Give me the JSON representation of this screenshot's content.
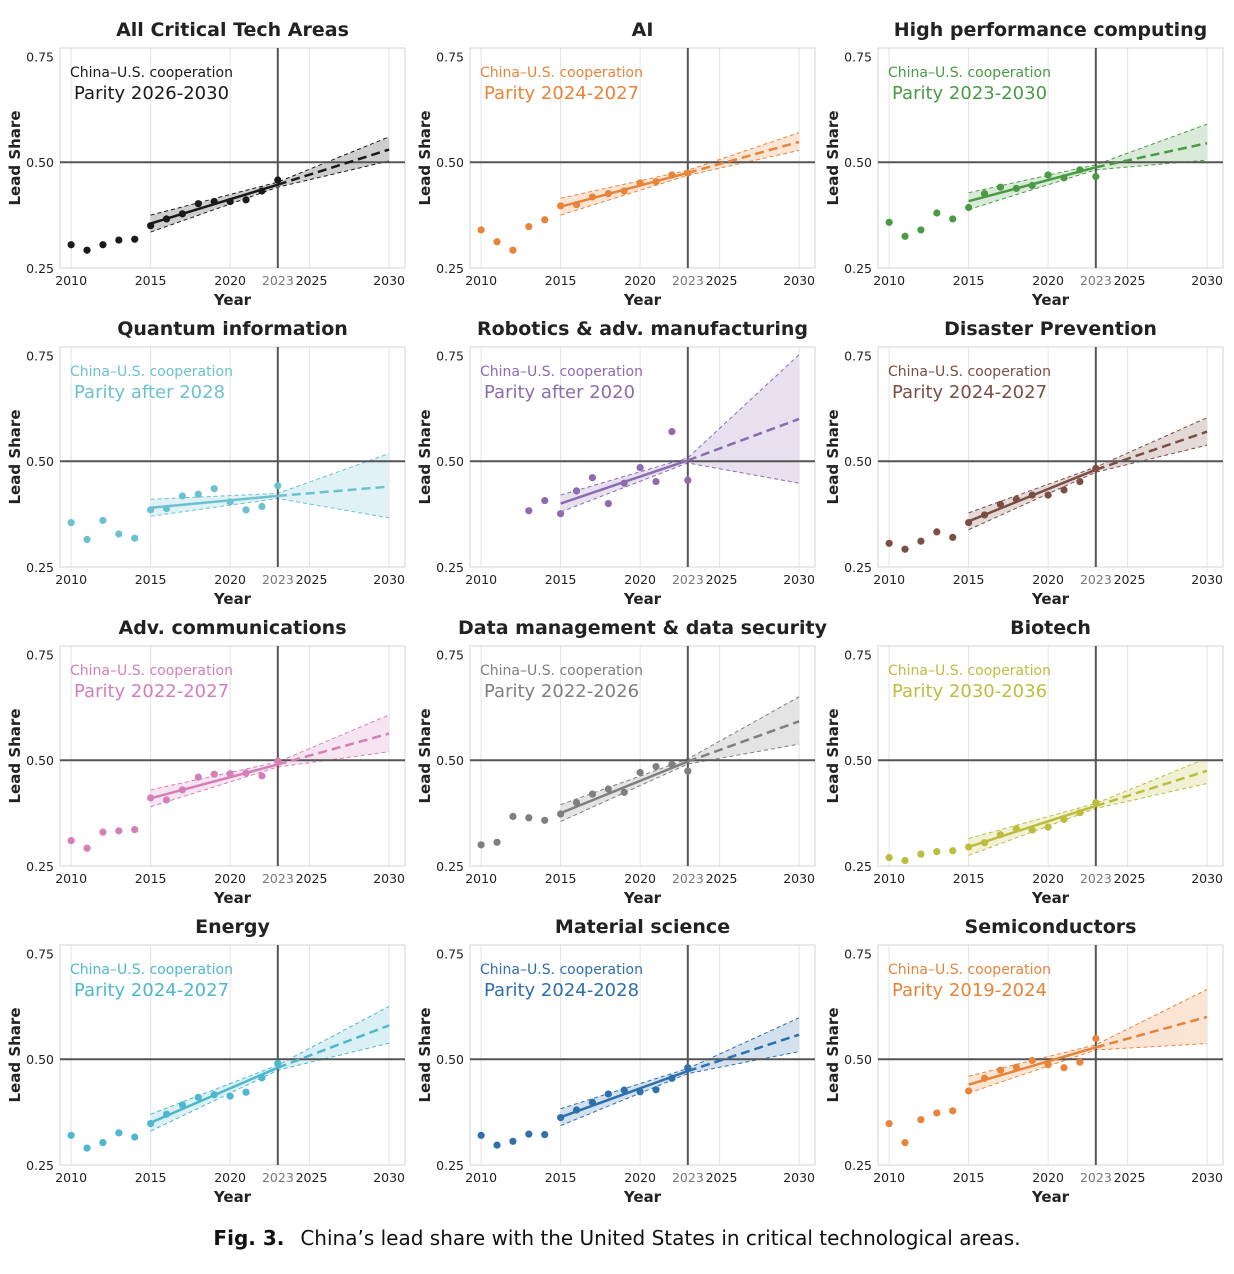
{
  "caption": {
    "label": "Fig. 3.",
    "text": "China’s lead share with the United States in critical technological areas."
  },
  "axes": {
    "xlabel": "Year",
    "ylabel": "Lead Share",
    "xlim": [
      2009.3,
      2031.0
    ],
    "ylim": [
      0.25,
      0.77
    ],
    "xticks": [
      2010,
      2015,
      2020,
      2023,
      2025,
      2030
    ],
    "highlight_xtick": 2023,
    "yticks": [
      0.25,
      0.5,
      0.75
    ],
    "ytick_labels": [
      "0.25",
      "0.50",
      "0.75"
    ],
    "reference_lines": {
      "x": 2023,
      "y": 0.5
    },
    "grid_x": true
  },
  "chart_data": [
    {
      "type": "scatter",
      "title": "All Critical Tech Areas",
      "color": "#1a1a1a",
      "annotation": {
        "line1": "China–U.S. cooperation",
        "line2": "Parity 2026-2030"
      },
      "points": [
        [
          2010,
          0.305
        ],
        [
          2011,
          0.292
        ],
        [
          2012,
          0.305
        ],
        [
          2013,
          0.316
        ],
        [
          2014,
          0.318
        ],
        [
          2015,
          0.35
        ],
        [
          2016,
          0.366
        ],
        [
          2017,
          0.378
        ],
        [
          2018,
          0.402
        ],
        [
          2019,
          0.407
        ],
        [
          2020,
          0.407
        ],
        [
          2021,
          0.411
        ],
        [
          2022,
          0.432
        ],
        [
          2023,
          0.458
        ]
      ],
      "fit": {
        "start": [
          2015,
          0.355
        ],
        "end": [
          2023,
          0.447
        ]
      },
      "projection": {
        "end": 2030,
        "mid": 0.53,
        "upper": 0.56,
        "lower": 0.503
      }
    },
    {
      "type": "scatter",
      "title": "AI",
      "color": "#e8843a",
      "annotation": {
        "line1": "China–U.S. cooperation",
        "line2": "Parity 2024-2027"
      },
      "points": [
        [
          2010,
          0.34
        ],
        [
          2011,
          0.312
        ],
        [
          2012,
          0.292
        ],
        [
          2013,
          0.348
        ],
        [
          2014,
          0.364
        ],
        [
          2015,
          0.397
        ],
        [
          2016,
          0.4
        ],
        [
          2017,
          0.418
        ],
        [
          2018,
          0.426
        ],
        [
          2019,
          0.432
        ],
        [
          2020,
          0.451
        ],
        [
          2021,
          0.454
        ],
        [
          2022,
          0.47
        ],
        [
          2023,
          0.474
        ]
      ],
      "fit": {
        "start": [
          2015,
          0.395
        ],
        "end": [
          2023,
          0.475
        ]
      },
      "projection": {
        "end": 2030,
        "mid": 0.548,
        "upper": 0.57,
        "lower": 0.528
      }
    },
    {
      "type": "scatter",
      "title": "High performance computing",
      "color": "#4a9a45",
      "annotation": {
        "line1": "China–U.S. cooperation",
        "line2": "Parity 2023-2030"
      },
      "points": [
        [
          2010,
          0.358
        ],
        [
          2011,
          0.325
        ],
        [
          2012,
          0.34
        ],
        [
          2013,
          0.38
        ],
        [
          2014,
          0.366
        ],
        [
          2015,
          0.393
        ],
        [
          2016,
          0.426
        ],
        [
          2017,
          0.441
        ],
        [
          2018,
          0.438
        ],
        [
          2019,
          0.445
        ],
        [
          2020,
          0.47
        ],
        [
          2021,
          0.463
        ],
        [
          2022,
          0.482
        ],
        [
          2023,
          0.466
        ]
      ],
      "fit": {
        "start": [
          2015,
          0.408
        ],
        "end": [
          2023,
          0.488
        ]
      },
      "projection": {
        "end": 2030,
        "mid": 0.545,
        "upper": 0.59,
        "lower": 0.505
      }
    },
    {
      "type": "scatter",
      "title": "Quantum information",
      "color": "#6cc1cf",
      "annotation": {
        "line1": "China–U.S. cooperation",
        "line2": "Parity after 2028"
      },
      "points": [
        [
          2010,
          0.355
        ],
        [
          2011,
          0.315
        ],
        [
          2012,
          0.36
        ],
        [
          2013,
          0.328
        ],
        [
          2014,
          0.318
        ],
        [
          2015,
          0.385
        ],
        [
          2016,
          0.388
        ],
        [
          2017,
          0.418
        ],
        [
          2018,
          0.422
        ],
        [
          2019,
          0.435
        ],
        [
          2020,
          0.404
        ],
        [
          2021,
          0.385
        ],
        [
          2022,
          0.393
        ],
        [
          2023,
          0.442
        ]
      ],
      "fit": {
        "start": [
          2015,
          0.39
        ],
        "end": [
          2023,
          0.418
        ]
      },
      "projection": {
        "end": 2030,
        "mid": 0.44,
        "upper": 0.518,
        "lower": 0.366
      }
    },
    {
      "type": "scatter",
      "title": "Robotics & adv. manufacturing",
      "color": "#8c6bb1",
      "annotation": {
        "line1": "China–U.S. cooperation",
        "line2": "Parity after 2020"
      },
      "points": [
        [
          2013,
          0.383
        ],
        [
          2014,
          0.407
        ],
        [
          2015,
          0.376
        ],
        [
          2016,
          0.43
        ],
        [
          2017,
          0.461
        ],
        [
          2018,
          0.4
        ],
        [
          2019,
          0.448
        ],
        [
          2020,
          0.485
        ],
        [
          2021,
          0.452
        ],
        [
          2022,
          0.57
        ],
        [
          2023,
          0.455
        ]
      ],
      "fit": {
        "start": [
          2015,
          0.4
        ],
        "end": [
          2023,
          0.502
        ]
      },
      "projection": {
        "end": 2030,
        "mid": 0.6,
        "upper": 0.752,
        "lower": 0.448
      }
    },
    {
      "type": "scatter",
      "title": "Disaster Prevention",
      "color": "#7a4e45",
      "annotation": {
        "line1": "China–U.S. cooperation",
        "line2": "Parity 2024-2027"
      },
      "points": [
        [
          2010,
          0.306
        ],
        [
          2011,
          0.292
        ],
        [
          2012,
          0.311
        ],
        [
          2013,
          0.333
        ],
        [
          2014,
          0.32
        ],
        [
          2015,
          0.355
        ],
        [
          2016,
          0.373
        ],
        [
          2017,
          0.398
        ],
        [
          2018,
          0.41
        ],
        [
          2019,
          0.42
        ],
        [
          2020,
          0.42
        ],
        [
          2021,
          0.432
        ],
        [
          2022,
          0.452
        ],
        [
          2023,
          0.483
        ]
      ],
      "fit": {
        "start": [
          2015,
          0.358
        ],
        "end": [
          2023,
          0.48
        ]
      },
      "projection": {
        "end": 2030,
        "mid": 0.57,
        "upper": 0.603,
        "lower": 0.538
      }
    },
    {
      "type": "scatter",
      "title": "Adv. communications",
      "color": "#d57fb8",
      "annotation": {
        "line1": "China–U.S. cooperation",
        "line2": "Parity 2022-2027"
      },
      "points": [
        [
          2010,
          0.31
        ],
        [
          2011,
          0.292
        ],
        [
          2012,
          0.33
        ],
        [
          2013,
          0.333
        ],
        [
          2014,
          0.336
        ],
        [
          2015,
          0.411
        ],
        [
          2016,
          0.406
        ],
        [
          2017,
          0.43
        ],
        [
          2018,
          0.46
        ],
        [
          2019,
          0.467
        ],
        [
          2020,
          0.468
        ],
        [
          2021,
          0.47
        ],
        [
          2022,
          0.463
        ],
        [
          2023,
          0.498
        ]
      ],
      "fit": {
        "start": [
          2015,
          0.41
        ],
        "end": [
          2023,
          0.49
        ]
      },
      "projection": {
        "end": 2030,
        "mid": 0.563,
        "upper": 0.607,
        "lower": 0.52
      }
    },
    {
      "type": "scatter",
      "title": "Data management & data security",
      "color": "#7f7f7f",
      "annotation": {
        "line1": "China–U.S. cooperation",
        "line2": "Parity 2022-2026"
      },
      "points": [
        [
          2010,
          0.3
        ],
        [
          2011,
          0.306
        ],
        [
          2012,
          0.367
        ],
        [
          2013,
          0.364
        ],
        [
          2014,
          0.358
        ],
        [
          2015,
          0.373
        ],
        [
          2016,
          0.4
        ],
        [
          2017,
          0.42
        ],
        [
          2018,
          0.432
        ],
        [
          2019,
          0.424
        ],
        [
          2020,
          0.471
        ],
        [
          2021,
          0.485
        ],
        [
          2022,
          0.49
        ],
        [
          2023,
          0.474
        ]
      ],
      "fit": {
        "start": [
          2015,
          0.375
        ],
        "end": [
          2023,
          0.497
        ]
      },
      "projection": {
        "end": 2030,
        "mid": 0.592,
        "upper": 0.65,
        "lower": 0.538
      }
    },
    {
      "type": "scatter",
      "title": "Biotech",
      "color": "#bcbd3f",
      "annotation": {
        "line1": "China–U.S. cooperation",
        "line2": "Parity 2030-2036"
      },
      "points": [
        [
          2010,
          0.27
        ],
        [
          2011,
          0.263
        ],
        [
          2012,
          0.278
        ],
        [
          2013,
          0.284
        ],
        [
          2014,
          0.286
        ],
        [
          2015,
          0.295
        ],
        [
          2016,
          0.305
        ],
        [
          2017,
          0.324
        ],
        [
          2018,
          0.338
        ],
        [
          2019,
          0.335
        ],
        [
          2020,
          0.342
        ],
        [
          2021,
          0.36
        ],
        [
          2022,
          0.376
        ],
        [
          2023,
          0.4
        ]
      ],
      "fit": {
        "start": [
          2015,
          0.295
        ],
        "end": [
          2023,
          0.392
        ]
      },
      "projection": {
        "end": 2030,
        "mid": 0.475,
        "upper": 0.505,
        "lower": 0.445
      }
    },
    {
      "type": "scatter",
      "title": "Energy",
      "color": "#4db8cd",
      "annotation": {
        "line1": "China–U.S. cooperation",
        "line2": "Parity 2024-2027"
      },
      "points": [
        [
          2010,
          0.32
        ],
        [
          2011,
          0.29
        ],
        [
          2012,
          0.303
        ],
        [
          2013,
          0.326
        ],
        [
          2014,
          0.316
        ],
        [
          2015,
          0.348
        ],
        [
          2016,
          0.37
        ],
        [
          2017,
          0.392
        ],
        [
          2018,
          0.41
        ],
        [
          2019,
          0.416
        ],
        [
          2020,
          0.413
        ],
        [
          2021,
          0.422
        ],
        [
          2022,
          0.456
        ],
        [
          2023,
          0.49
        ]
      ],
      "fit": {
        "start": [
          2015,
          0.35
        ],
        "end": [
          2023,
          0.48
        ]
      },
      "projection": {
        "end": 2030,
        "mid": 0.58,
        "upper": 0.625,
        "lower": 0.538
      }
    },
    {
      "type": "scatter",
      "title": "Material science",
      "color": "#2e6fac",
      "annotation": {
        "line1": "China–U.S. cooperation",
        "line2": "Parity 2024-2028"
      },
      "points": [
        [
          2010,
          0.32
        ],
        [
          2011,
          0.297
        ],
        [
          2012,
          0.306
        ],
        [
          2013,
          0.323
        ],
        [
          2014,
          0.322
        ],
        [
          2015,
          0.362
        ],
        [
          2016,
          0.38
        ],
        [
          2017,
          0.398
        ],
        [
          2018,
          0.418
        ],
        [
          2019,
          0.427
        ],
        [
          2020,
          0.423
        ],
        [
          2021,
          0.428
        ],
        [
          2022,
          0.455
        ],
        [
          2023,
          0.48
        ]
      ],
      "fit": {
        "start": [
          2015,
          0.363
        ],
        "end": [
          2023,
          0.472
        ]
      },
      "projection": {
        "end": 2030,
        "mid": 0.558,
        "upper": 0.598,
        "lower": 0.518
      }
    },
    {
      "type": "scatter",
      "title": "Semiconductors",
      "color": "#e8843a",
      "annotation": {
        "line1": "China–U.S. cooperation",
        "line2": "Parity 2019-2024"
      },
      "points": [
        [
          2010,
          0.348
        ],
        [
          2011,
          0.303
        ],
        [
          2012,
          0.357
        ],
        [
          2013,
          0.373
        ],
        [
          2014,
          0.378
        ],
        [
          2015,
          0.425
        ],
        [
          2016,
          0.455
        ],
        [
          2017,
          0.474
        ],
        [
          2018,
          0.481
        ],
        [
          2019,
          0.497
        ],
        [
          2020,
          0.487
        ],
        [
          2021,
          0.48
        ],
        [
          2022,
          0.493
        ],
        [
          2023,
          0.549
        ]
      ],
      "fit": {
        "start": [
          2015,
          0.44
        ],
        "end": [
          2023,
          0.528
        ]
      },
      "projection": {
        "end": 2030,
        "mid": 0.6,
        "upper": 0.665,
        "lower": 0.537
      }
    }
  ]
}
